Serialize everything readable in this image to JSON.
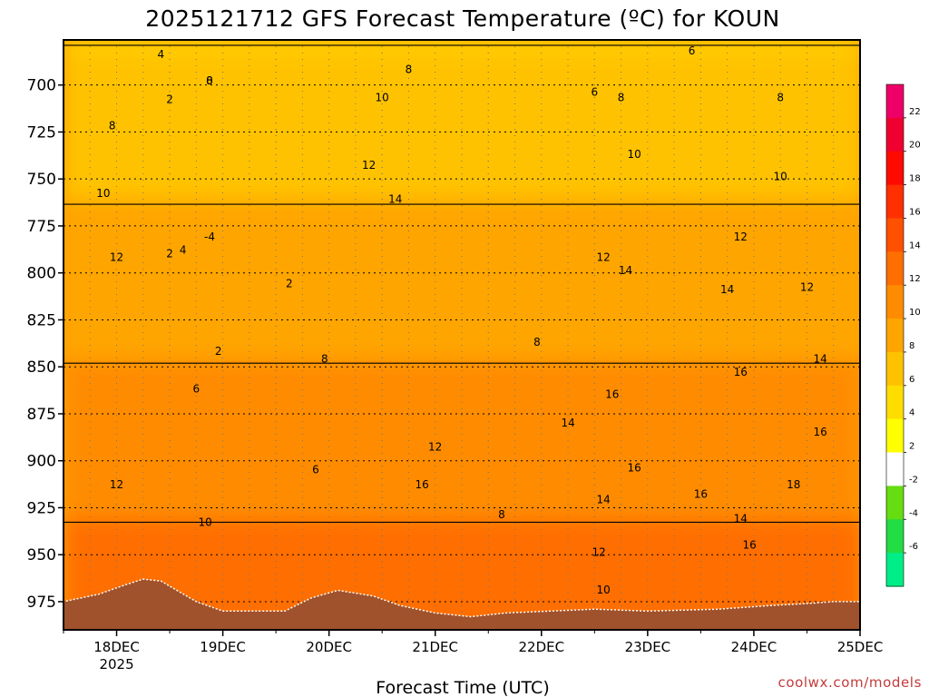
{
  "chart_data": {
    "type": "heatmap",
    "title": "2025121712 GFS Forecast Temperature (ºC) for KOUN",
    "xlabel": "Forecast Time (UTC)",
    "ylabel": "",
    "credit": "coolwx.com/models",
    "y_axis": {
      "quantity": "pressure (hPa)",
      "ticks": [
        700,
        725,
        750,
        775,
        800,
        825,
        850,
        875,
        900,
        925,
        950,
        975
      ],
      "range": [
        676,
        990
      ],
      "inverted": true
    },
    "x_axis": {
      "ticks": [
        {
          "label": "18DEC",
          "sublabel": "2025",
          "time": "2025-12-18T00Z"
        },
        {
          "label": "19DEC",
          "sublabel": "",
          "time": "2025-12-19T00Z"
        },
        {
          "label": "20DEC",
          "sublabel": "",
          "time": "2025-12-20T00Z"
        },
        {
          "label": "21DEC",
          "sublabel": "",
          "time": "2025-12-21T00Z"
        },
        {
          "label": "22DEC",
          "sublabel": "",
          "time": "2025-12-22T00Z"
        },
        {
          "label": "23DEC",
          "sublabel": "",
          "time": "2025-12-23T00Z"
        },
        {
          "label": "24DEC",
          "sublabel": "",
          "time": "2025-12-24T00Z"
        },
        {
          "label": "25DEC",
          "sublabel": "",
          "time": "2025-12-25T00Z"
        }
      ],
      "range": [
        "2025-12-17T12Z",
        "2025-12-25T00Z"
      ]
    },
    "grid": true,
    "colorbar": {
      "placement": "right",
      "bins": [
        {
          "from": -8,
          "to": -6,
          "color": "#00ee88"
        },
        {
          "from": -6,
          "to": -4,
          "color": "#22dd44"
        },
        {
          "from": -4,
          "to": -2,
          "color": "#66dd11"
        },
        {
          "from": -2,
          "to": 2,
          "color": "#ffffff"
        },
        {
          "from": 2,
          "to": 4,
          "color": "#ffff00"
        },
        {
          "from": 4,
          "to": 6,
          "color": "#ffdd00"
        },
        {
          "from": 6,
          "to": 8,
          "color": "#ffc200"
        },
        {
          "from": 8,
          "to": 10,
          "color": "#ffa500"
        },
        {
          "from": 10,
          "to": 12,
          "color": "#ff8c00"
        },
        {
          "from": 12,
          "to": 14,
          "color": "#ff6e00"
        },
        {
          "from": 14,
          "to": 16,
          "color": "#ff5000"
        },
        {
          "from": 16,
          "to": 18,
          "color": "#ff3000"
        },
        {
          "from": 18,
          "to": 20,
          "color": "#ff0a00"
        },
        {
          "from": 20,
          "to": 22,
          "color": "#f00030"
        },
        {
          "from": 22,
          "to": 24,
          "color": "#ee0068"
        }
      ],
      "tick_labels": [
        "22",
        "20",
        "18",
        "16",
        "14",
        "12",
        "10",
        "8",
        "6",
        "4",
        "2",
        "-2",
        "-4",
        "-6"
      ]
    },
    "terrain_color": "#a0522d",
    "contour_labels": [
      {
        "text": "4",
        "time": "2025-12-18T10Z",
        "p": 684
      },
      {
        "text": "0",
        "time": "2025-12-18T21Z",
        "p": 698
      },
      {
        "text": "2",
        "time": "2025-12-18T12Z",
        "p": 708
      },
      {
        "text": "8",
        "time": "2025-12-18T21Z",
        "p": 698
      },
      {
        "text": "8",
        "time": "2025-12-17T23Z",
        "p": 722
      },
      {
        "text": "10",
        "time": "2025-12-17T21Z",
        "p": 758
      },
      {
        "text": "2",
        "time": "2025-12-18T12Z",
        "p": 790
      },
      {
        "text": "12",
        "time": "2025-12-18T00Z",
        "p": 792
      },
      {
        "text": "4",
        "time": "2025-12-18T15Z",
        "p": 788
      },
      {
        "text": "-4",
        "time": "2025-12-18T21Z",
        "p": 781
      },
      {
        "text": "2",
        "time": "2025-12-19T15Z",
        "p": 806
      },
      {
        "text": "2",
        "time": "2025-12-18T23Z",
        "p": 842
      },
      {
        "text": "6",
        "time": "2025-12-18T18Z",
        "p": 862
      },
      {
        "text": "6",
        "time": "2025-12-19T21Z",
        "p": 905
      },
      {
        "text": "8",
        "time": "2025-12-19T23Z",
        "p": 846
      },
      {
        "text": "12",
        "time": "2025-12-18T00Z",
        "p": 913
      },
      {
        "text": "10",
        "time": "2025-12-18T20Z",
        "p": 933
      },
      {
        "text": "8",
        "time": "2025-12-20T18Z",
        "p": 692
      },
      {
        "text": "10",
        "time": "2025-12-20T12Z",
        "p": 707
      },
      {
        "text": "12",
        "time": "2025-12-20T09Z",
        "p": 743
      },
      {
        "text": "14",
        "time": "2025-12-20T15Z",
        "p": 761
      },
      {
        "text": "12",
        "time": "2025-12-21T00Z",
        "p": 893
      },
      {
        "text": "16",
        "time": "2025-12-20T21Z",
        "p": 913
      },
      {
        "text": "8",
        "time": "2025-12-21T15Z",
        "p": 929
      },
      {
        "text": "6",
        "time": "2025-12-22T12Z",
        "p": 704
      },
      {
        "text": "8",
        "time": "2025-12-22T18Z",
        "p": 707
      },
      {
        "text": "6",
        "time": "2025-12-23T10Z",
        "p": 682
      },
      {
        "text": "8",
        "time": "2025-12-24T06Z",
        "p": 707
      },
      {
        "text": "10",
        "time": "2025-12-22T21Z",
        "p": 737
      },
      {
        "text": "10",
        "time": "2025-12-24T06Z",
        "p": 749
      },
      {
        "text": "12",
        "time": "2025-12-23T21Z",
        "p": 781
      },
      {
        "text": "12",
        "time": "2025-12-22T14Z",
        "p": 792
      },
      {
        "text": "14",
        "time": "2025-12-22T19Z",
        "p": 799
      },
      {
        "text": "14",
        "time": "2025-12-23T18Z",
        "p": 809
      },
      {
        "text": "12",
        "time": "2025-12-24T12Z",
        "p": 808
      },
      {
        "text": "8",
        "time": "2025-12-21T23Z",
        "p": 837
      },
      {
        "text": "14",
        "time": "2025-12-24T15Z",
        "p": 846
      },
      {
        "text": "16",
        "time": "2025-12-23T21Z",
        "p": 853
      },
      {
        "text": "16",
        "time": "2025-12-22T16Z",
        "p": 865
      },
      {
        "text": "14",
        "time": "2025-12-22T06Z",
        "p": 880
      },
      {
        "text": "16",
        "time": "2025-12-24T15Z",
        "p": 885
      },
      {
        "text": "16",
        "time": "2025-12-22T21Z",
        "p": 904
      },
      {
        "text": "18",
        "time": "2025-12-24T09Z",
        "p": 913
      },
      {
        "text": "16",
        "time": "2025-12-23T12Z",
        "p": 918
      },
      {
        "text": "14",
        "time": "2025-12-22T14Z",
        "p": 921
      },
      {
        "text": "14",
        "time": "2025-12-23T21Z",
        "p": 931
      },
      {
        "text": "16",
        "time": "2025-12-23T23Z",
        "p": 945
      },
      {
        "text": "12",
        "time": "2025-12-22T13Z",
        "p": 949
      },
      {
        "text": "10",
        "time": "2025-12-22T14Z",
        "p": 969
      }
    ]
  }
}
